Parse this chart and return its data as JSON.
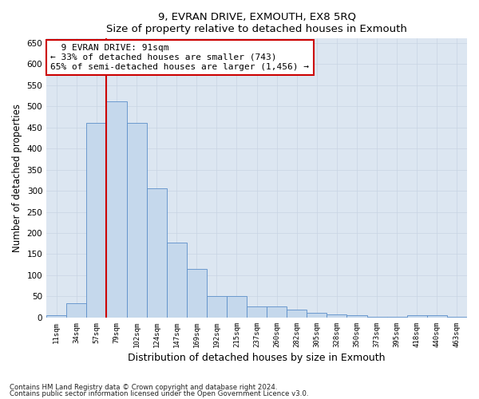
{
  "title1": "9, EVRAN DRIVE, EXMOUTH, EX8 5RQ",
  "title2": "Size of property relative to detached houses in Exmouth",
  "xlabel": "Distribution of detached houses by size in Exmouth",
  "ylabel": "Number of detached properties",
  "categories": [
    "11sqm",
    "34sqm",
    "57sqm",
    "79sqm",
    "102sqm",
    "124sqm",
    "147sqm",
    "169sqm",
    "192sqm",
    "215sqm",
    "237sqm",
    "260sqm",
    "282sqm",
    "305sqm",
    "328sqm",
    "350sqm",
    "373sqm",
    "395sqm",
    "418sqm",
    "440sqm",
    "463sqm"
  ],
  "values": [
    5,
    33,
    460,
    512,
    460,
    305,
    178,
    115,
    50,
    50,
    26,
    26,
    18,
    12,
    8,
    5,
    2,
    2,
    5,
    5,
    2
  ],
  "bar_color": "#c5d8ec",
  "bar_edge_color": "#5b8fc9",
  "vline_color": "#cc0000",
  "vline_x_index": 3.0,
  "annotation_text": "  9 EVRAN DRIVE: 91sqm\n← 33% of detached houses are smaller (743)\n65% of semi-detached houses are larger (1,456) →",
  "annotation_box_color": "#ffffff",
  "annotation_box_edge": "#cc0000",
  "ylim": [
    0,
    660
  ],
  "yticks": [
    0,
    50,
    100,
    150,
    200,
    250,
    300,
    350,
    400,
    450,
    500,
    550,
    600,
    650
  ],
  "footnote1": "Contains HM Land Registry data © Crown copyright and database right 2024.",
  "footnote2": "Contains public sector information licensed under the Open Government Licence v3.0.",
  "grid_color": "#c8d4e3",
  "bg_color": "#dce6f1",
  "fig_width": 6.0,
  "fig_height": 5.0
}
